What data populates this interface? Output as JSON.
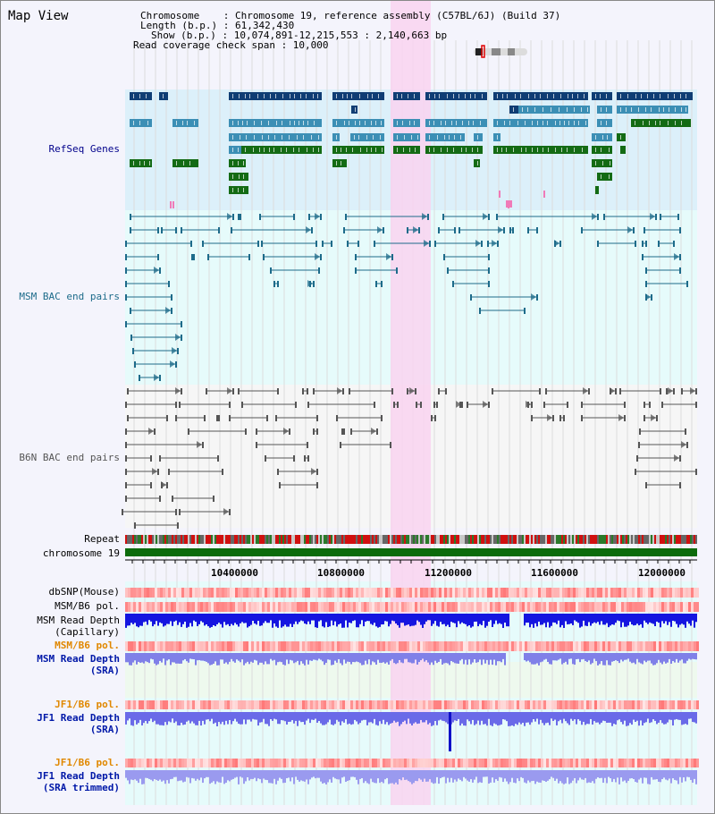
{
  "header": {
    "title": "Map View",
    "chromosome_line": "Chromosome    : Chromosome 19, reference assembly (C57BL/6J) (Build 37)",
    "length_line": "Length (b.p.) : 61,342,430",
    "show_line": "Show (b.p.) : 10,074,891-12,215,553 : 2,140,663 bp",
    "coverage_line": "Read coverage check span : 10,000"
  },
  "tracks": {
    "refseq": "RefSeq Genes",
    "msm_bac": "MSM BAC end pairs",
    "b6n_bac": "B6N BAC end pairs",
    "repeat": "Repeat",
    "chromosome": "chromosome 19",
    "dbsnp": "dbSNP(Mouse)",
    "msm_b6_pol_1": "MSM/B6 pol.",
    "msm_read_depth_cap": "MSM Read Depth",
    "msm_read_depth_cap_sub": "(Capillary)",
    "msm_b6_pol_2": "MSM/B6 pol.",
    "msm_read_depth_sra": "MSM Read Depth",
    "msm_read_depth_sra_sub": "(SRA)",
    "jf1_b6_pol_1": "JF1/B6 pol.",
    "jf1_read_depth": "JF1 Read Depth",
    "jf1_read_depth_sub": "(SRA)",
    "jf1_b6_pol_2": "JF1/B6 pol.",
    "jf1_read_depth_trim": "JF1 Read Depth",
    "jf1_read_depth_trim_sub": "(SRA trimmed)"
  },
  "axis": {
    "ticks": [
      "10400000",
      "10800000",
      "11200000",
      "11600000",
      "12000000"
    ]
  },
  "colors": {
    "highlight": "#f9d4f0",
    "refseq_dark": "#0f3d74",
    "refseq_mid": "#3c8fb5",
    "refseq_green": "#146b14",
    "msm_bac": "#1d6b8a",
    "b6n_bac": "#555555",
    "read_depth_blue": "#1515e0",
    "chromosome_bar": "#0c6b0c"
  }
}
